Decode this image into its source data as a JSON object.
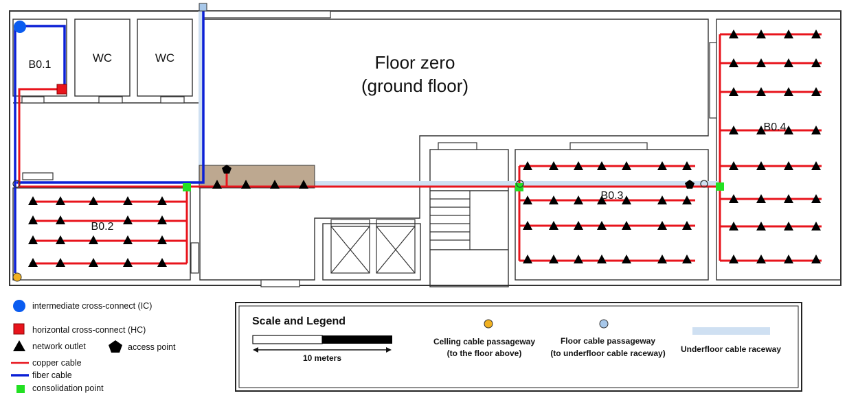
{
  "floor_title": [
    "Floor zero",
    "(ground floor)"
  ],
  "rooms": {
    "b01": "B0.1",
    "wc1": "WC",
    "wc2": "WC",
    "b02": "B0.2",
    "b03": "B0.3",
    "b04": "B0.4"
  },
  "legend": {
    "ic": "intermediate cross-connect (IC)",
    "hc": "horizontal cross-connect (HC)",
    "outlet": "network outlet",
    "ap": "access point",
    "copper": "copper cable",
    "fiber": "fiber cable",
    "cp": "consolidation point"
  },
  "scale_legend": {
    "title": "Scale and Legend",
    "scale": "10 meters",
    "ceiling": [
      "Celling cable passageway",
      "(to the floor above)"
    ],
    "floor": [
      "Floor cable passageway",
      "(to underfloor cable raceway)"
    ],
    "raceway": "Underfloor cable raceway"
  },
  "colors": {
    "copper": "#e8141c",
    "fiber": "#0b20d6",
    "cp": "#22e022",
    "ic": "#0a5cf0",
    "hc": "#e8141c",
    "ceiling_passage": "#f0b020",
    "floor_passage": "#a8c8ea",
    "raceway": "#cfe0f2",
    "panel": "#bda890"
  }
}
